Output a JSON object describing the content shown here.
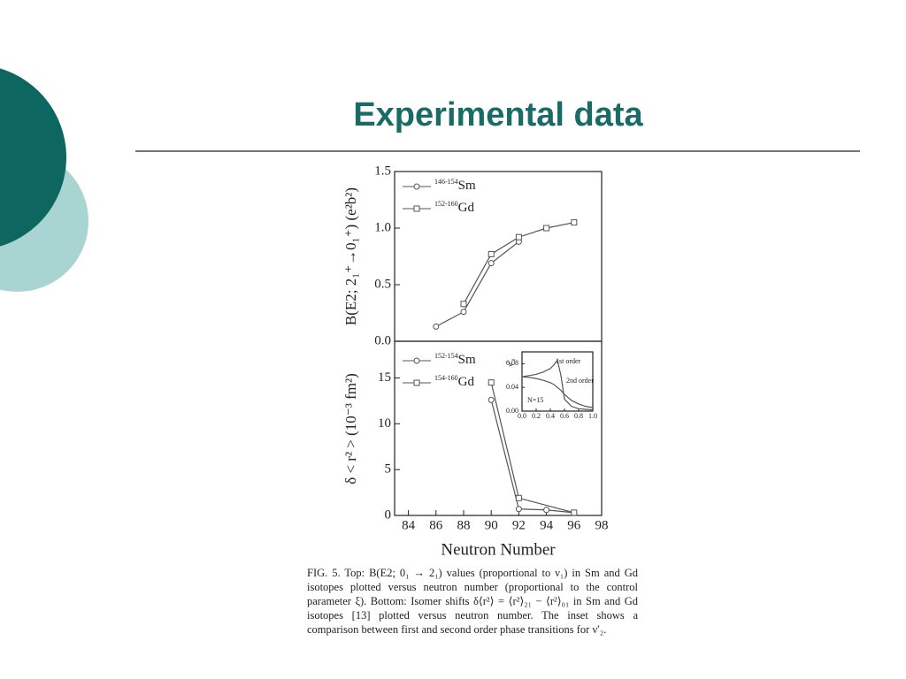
{
  "slide": {
    "title": "Experimental data"
  },
  "chart_data": [
    {
      "type": "line",
      "ylabel": "B(E2; 2₁⁺→0₁⁺) (e²b²)",
      "xlim": [
        83,
        98
      ],
      "ylim": [
        0,
        1.5
      ],
      "yticks": [
        {
          "value": 0,
          "label": "0.0"
        },
        0.5,
        {
          "value": 1,
          "label": "1.0"
        },
        1.5
      ],
      "series": [
        {
          "name": "Sm",
          "isotopes": "146-154",
          "marker": "circle",
          "color": "#555555",
          "x": [
            86,
            88,
            90,
            92
          ],
          "values": [
            0.13,
            0.26,
            0.69,
            0.88
          ]
        },
        {
          "name": "Gd",
          "isotopes": "152-160",
          "marker": "square",
          "color": "#555555",
          "x": [
            88,
            90,
            92,
            94,
            96
          ],
          "values": [
            0.33,
            0.77,
            0.92,
            1.0,
            1.05
          ]
        }
      ]
    },
    {
      "type": "line",
      "ylabel": "δ < r² > (10⁻³ fm²)",
      "xlabel": "Neutron Number",
      "xlim": [
        83,
        98
      ],
      "ylim": [
        0,
        19
      ],
      "xticks": [
        84,
        86,
        88,
        90,
        92,
        94,
        96,
        98
      ],
      "yticks": [
        0,
        5,
        10,
        15
      ],
      "series": [
        {
          "name": "Sm",
          "isotopes": "152-154",
          "marker": "circle",
          "color": "#555555",
          "x": [
            90,
            92,
            94,
            96
          ],
          "values": [
            12.6,
            0.7,
            0.6,
            0.3
          ]
        },
        {
          "name": "Gd",
          "isotopes": "154-160",
          "marker": "square",
          "color": "#555555",
          "x": [
            90,
            92,
            96
          ],
          "values": [
            14.5,
            1.9,
            0.3
          ]
        }
      ]
    },
    {
      "type": "line",
      "ylabel": "ν′₂",
      "inset": true,
      "xlim": [
        0,
        1
      ],
      "ylim": [
        0,
        0.1
      ],
      "xticks": [
        {
          "value": 0,
          "label": "0.0"
        },
        0.2,
        0.4,
        0.6,
        0.8,
        {
          "value": 1,
          "label": "1.0"
        }
      ],
      "yticks": [
        {
          "value": 0,
          "label": "0.00"
        },
        0.04,
        0.08
      ],
      "annotations": [
        "1st order",
        "2nd order",
        "N=15"
      ],
      "series": [
        {
          "color": "#555555",
          "x": [
            0,
            0.1,
            0.2,
            0.3,
            0.4,
            0.45,
            0.5,
            0.55,
            0.6,
            0.7,
            0.8,
            0.9,
            1.0
          ],
          "values": [
            0.058,
            0.06,
            0.062,
            0.066,
            0.072,
            0.078,
            0.086,
            0.06,
            0.02,
            0.008,
            0.004,
            0.003,
            0.002
          ]
        },
        {
          "color": "#555555",
          "x": [
            0,
            0.1,
            0.2,
            0.3,
            0.4,
            0.45,
            0.5,
            0.55,
            0.6,
            0.7,
            0.8,
            0.9,
            1.0
          ],
          "values": [
            0.058,
            0.057,
            0.055,
            0.052,
            0.048,
            0.045,
            0.04,
            0.035,
            0.028,
            0.018,
            0.012,
            0.008,
            0.006
          ]
        }
      ]
    }
  ],
  "caption": "FIG. 5.   Top: B(E2; 0₁ → 2₁) values (proportional to ν₁) in Sm and Gd isotopes plotted versus neutron number (proportional to the control parameter ξ). Bottom: Isomer shifts δ⟨r²⟩ = ⟨r²⟩₂₁ − ⟨r²⟩₀₁ in Sm and Gd isotopes [13] plotted versus neutron number. The inset shows a comparison between first and second order phase transitions for ν′₂."
}
